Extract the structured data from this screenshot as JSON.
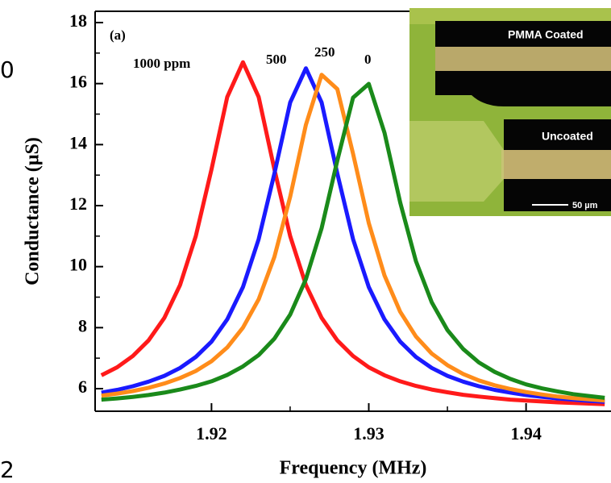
{
  "chart_data": {
    "type": "line",
    "panel_label": "(a)",
    "x_label": "Frequency (MHz)",
    "y_label": "Conductance (µS)",
    "x": [
      1.913,
      1.914,
      1.915,
      1.916,
      1.917,
      1.918,
      1.919,
      1.92,
      1.921,
      1.922,
      1.923,
      1.924,
      1.925,
      1.926,
      1.927,
      1.928,
      1.929,
      1.93,
      1.931,
      1.932,
      1.933,
      1.934,
      1.935,
      1.936,
      1.937,
      1.938,
      1.939,
      1.94,
      1.941,
      1.942,
      1.943,
      1.944,
      1.945
    ],
    "series": [
      {
        "name": "1000 ppm",
        "color": "#ff1a1a",
        "values": [
          6.44,
          6.7,
          7.07,
          7.58,
          8.32,
          9.4,
          11.0,
          13.19,
          15.56,
          16.7,
          15.56,
          13.19,
          11.0,
          9.4,
          8.32,
          7.58,
          7.07,
          6.7,
          6.44,
          6.24,
          6.09,
          5.97,
          5.88,
          5.8,
          5.74,
          5.69,
          5.64,
          5.61,
          5.58,
          5.55,
          5.53,
          5.51,
          5.49
        ]
      },
      {
        "name": "500",
        "color": "#1a1aff",
        "values": [
          5.87,
          5.96,
          6.08,
          6.23,
          6.42,
          6.68,
          7.04,
          7.54,
          8.27,
          9.33,
          10.9,
          13.05,
          15.38,
          16.5,
          15.38,
          13.05,
          10.9,
          9.33,
          8.27,
          7.54,
          7.04,
          6.68,
          6.42,
          6.23,
          6.08,
          5.96,
          5.87,
          5.79,
          5.73,
          5.68,
          5.64,
          5.6,
          5.57
        ]
      },
      {
        "name": "250",
        "color": "#ff8c1a",
        "values": [
          5.77,
          5.84,
          5.92,
          6.03,
          6.17,
          6.35,
          6.58,
          6.9,
          7.35,
          8.0,
          8.93,
          10.32,
          12.29,
          14.65,
          16.29,
          15.82,
          13.7,
          11.43,
          9.71,
          8.52,
          7.71,
          7.15,
          6.77,
          6.48,
          6.27,
          6.11,
          5.99,
          5.89,
          5.81,
          5.74,
          5.69,
          5.65,
          5.61
        ]
      },
      {
        "name": "0",
        "color": "#1a8a1a",
        "values": [
          5.64,
          5.68,
          5.73,
          5.79,
          5.87,
          5.97,
          6.09,
          6.24,
          6.45,
          6.73,
          7.1,
          7.64,
          8.43,
          9.59,
          11.26,
          13.48,
          15.54,
          15.99,
          14.39,
          12.1,
          10.18,
          8.83,
          7.92,
          7.3,
          6.86,
          6.55,
          6.32,
          6.14,
          6.01,
          5.91,
          5.82,
          5.76,
          5.7
        ]
      }
    ],
    "xlim": [
      1.9126,
      1.9454
    ],
    "ylim": [
      5.26,
      18.37
    ],
    "xticks": [
      1.92,
      1.93,
      1.94
    ],
    "yticks": [
      6,
      8,
      10,
      12,
      14,
      16,
      18
    ],
    "inset": {
      "top_label": "PMMA Coated",
      "bottom_label": "Uncoated",
      "scale_label": "50 µm"
    },
    "cropped_text": [
      "0",
      "2"
    ]
  }
}
